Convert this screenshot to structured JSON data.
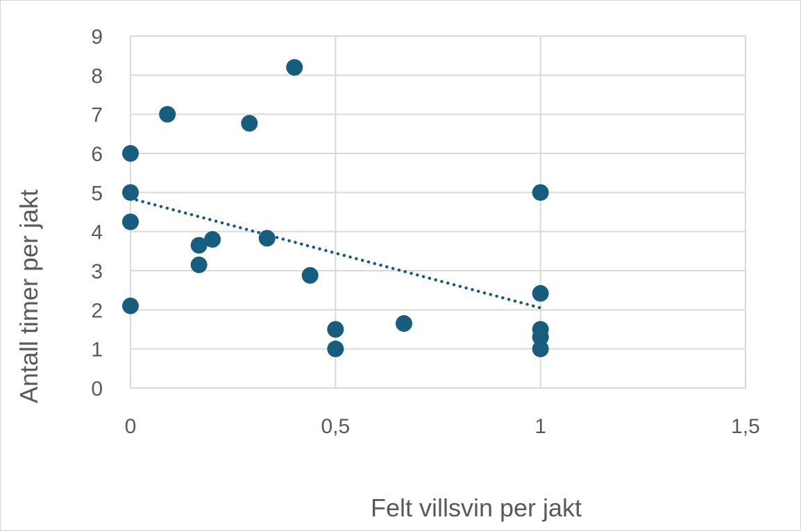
{
  "chart_data": {
    "type": "scatter",
    "title": "",
    "xlabel": "Felt villsvin per jakt",
    "ylabel": "Antall timer per jakt",
    "xlim": [
      0,
      1.5
    ],
    "ylim": [
      0,
      9
    ],
    "x_ticks": [
      "0",
      "0,5",
      "1",
      "1,5"
    ],
    "y_ticks": [
      "0",
      "1",
      "2",
      "3",
      "4",
      "5",
      "6",
      "7",
      "8",
      "9"
    ],
    "grid": true,
    "legend": "none",
    "series": [
      {
        "color": "#175d7d",
        "points": [
          {
            "x": 0,
            "y": 6.0
          },
          {
            "x": 0,
            "y": 5.0
          },
          {
            "x": 0,
            "y": 4.25
          },
          {
            "x": 0,
            "y": 2.1
          },
          {
            "x": 0.09,
            "y": 7.0
          },
          {
            "x": 0.167,
            "y": 3.65
          },
          {
            "x": 0.167,
            "y": 3.15
          },
          {
            "x": 0.2,
            "y": 3.8
          },
          {
            "x": 0.29,
            "y": 6.77
          },
          {
            "x": 0.333,
            "y": 3.83
          },
          {
            "x": 0.4,
            "y": 8.2
          },
          {
            "x": 0.438,
            "y": 2.88
          },
          {
            "x": 0.5,
            "y": 1.5
          },
          {
            "x": 0.5,
            "y": 1.0
          },
          {
            "x": 0.667,
            "y": 1.65
          },
          {
            "x": 1.0,
            "y": 5.0
          },
          {
            "x": 1.0,
            "y": 2.42
          },
          {
            "x": 1.0,
            "y": 1.5
          },
          {
            "x": 1.0,
            "y": 1.3
          },
          {
            "x": 1.0,
            "y": 1.0
          }
        ]
      }
    ],
    "trendline": {
      "style": "dotted",
      "color": "#175d7d",
      "from": {
        "x": 0,
        "y": 4.85
      },
      "to": {
        "x": 1.0,
        "y": 2.05
      }
    }
  }
}
